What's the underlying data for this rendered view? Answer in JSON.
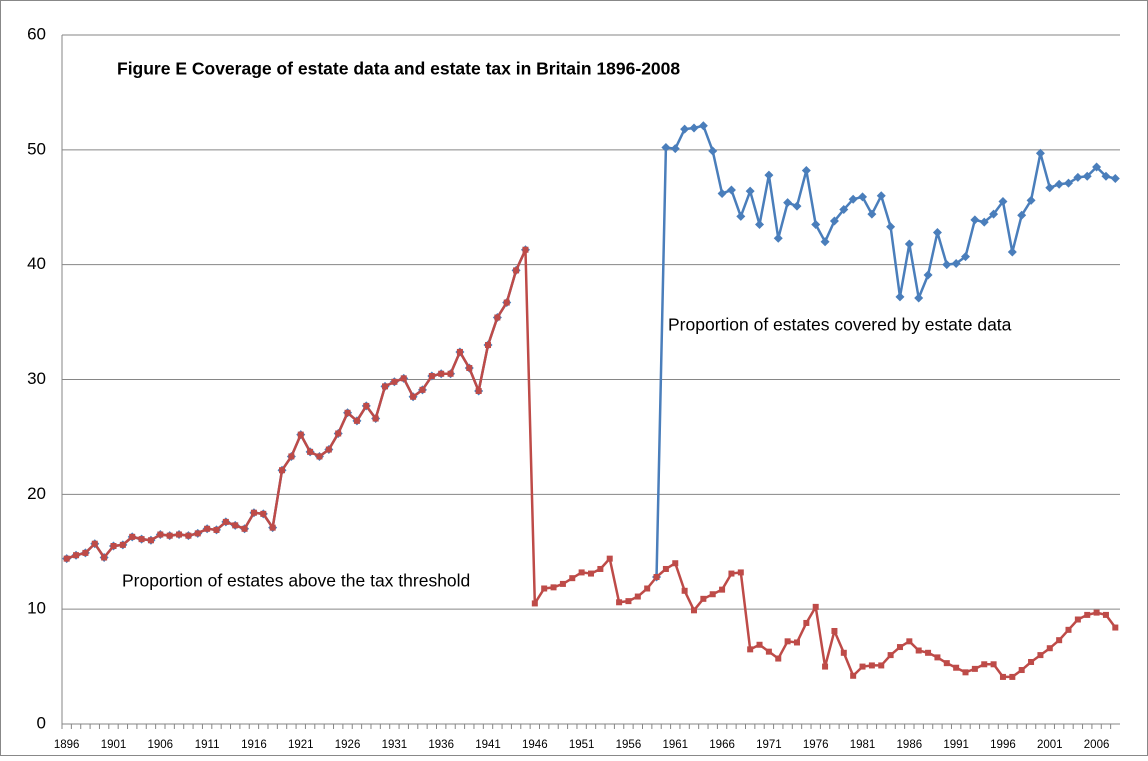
{
  "chart_data": {
    "type": "line",
    "title": "Figure E Coverage of estate data and estate tax in Britain 1896-2008",
    "annotations": [
      "Proportion of estates covered by estate data",
      "Proportion of estates above the tax threshold"
    ],
    "categories": [
      "1896",
      null,
      null,
      null,
      null,
      "1901",
      null,
      null,
      null,
      null,
      "1906",
      null,
      null,
      null,
      null,
      "1911",
      null,
      null,
      null,
      null,
      "1916",
      null,
      null,
      null,
      null,
      "1921",
      null,
      null,
      null,
      null,
      "1926",
      null,
      null,
      null,
      null,
      "1931",
      null,
      null,
      null,
      null,
      "1936",
      null,
      null,
      null,
      null,
      "1941",
      null,
      null,
      null,
      null,
      "1946",
      null,
      null,
      null,
      null,
      "1951",
      null,
      null,
      null,
      null,
      "1956",
      null,
      null,
      null,
      null,
      "1961",
      null,
      null,
      null,
      null,
      "1966",
      null,
      null,
      null,
      null,
      "1971",
      null,
      null,
      null,
      null,
      "1976",
      null,
      null,
      null,
      null,
      "1981",
      null,
      null,
      null,
      null,
      "1986",
      null,
      null,
      null,
      null,
      "1991",
      null,
      null,
      null,
      null,
      "1996",
      null,
      null,
      null,
      null,
      "2001",
      null,
      null,
      null,
      null,
      "2006",
      null,
      null
    ],
    "series": [
      {
        "name": "Proportion of estates covered by estate data",
        "color": "#4a7ebb",
        "marker": "diamond",
        "values": [
          14.4,
          14.7,
          14.9,
          15.7,
          14.5,
          15.5,
          15.6,
          16.3,
          16.1,
          16.0,
          16.5,
          16.4,
          16.5,
          16.4,
          16.6,
          17.0,
          16.9,
          17.6,
          17.3,
          17.0,
          18.4,
          18.3,
          17.1,
          22.1,
          23.3,
          25.2,
          23.7,
          23.3,
          23.9,
          25.3,
          27.1,
          26.4,
          27.7,
          26.6,
          29.4,
          29.8,
          30.1,
          28.5,
          29.1,
          30.3,
          30.5,
          30.5,
          32.4,
          31.0,
          29.0,
          33.0,
          35.4,
          36.7,
          39.5,
          41.3,
          null,
          null,
          null,
          null,
          null,
          null,
          null,
          null,
          null,
          null,
          null,
          null,
          null,
          12.8,
          50.2,
          50.1,
          51.8,
          51.9,
          52.1,
          49.9,
          46.2,
          46.5,
          44.2,
          46.4,
          43.5,
          47.8,
          42.3,
          45.4,
          45.1,
          48.2,
          43.5,
          42.0,
          43.8,
          44.8,
          45.7,
          45.9,
          44.4,
          46.0,
          43.3,
          37.2,
          41.8,
          37.1,
          39.1,
          42.8,
          40.0,
          40.1,
          40.7,
          43.9,
          43.7,
          44.4,
          45.5,
          41.1,
          44.3,
          45.6,
          49.7,
          46.7,
          47.0,
          47.1,
          47.6,
          47.7,
          48.5,
          47.7,
          47.5
        ]
      },
      {
        "name": "Proportion of estates above the tax threshold",
        "color": "#be4b48",
        "marker": "square",
        "values": [
          14.4,
          14.7,
          14.9,
          15.7,
          14.5,
          15.5,
          15.6,
          16.3,
          16.1,
          16.0,
          16.5,
          16.4,
          16.5,
          16.4,
          16.6,
          17.0,
          16.9,
          17.6,
          17.3,
          17.0,
          18.4,
          18.3,
          17.1,
          22.1,
          23.3,
          25.2,
          23.7,
          23.3,
          23.9,
          25.3,
          27.1,
          26.4,
          27.7,
          26.6,
          29.4,
          29.8,
          30.1,
          28.5,
          29.1,
          30.3,
          30.5,
          30.5,
          32.4,
          31.0,
          29.0,
          33.0,
          35.4,
          36.7,
          39.5,
          41.3,
          10.5,
          11.8,
          11.9,
          12.2,
          12.7,
          13.2,
          13.1,
          13.5,
          14.4,
          10.6,
          10.7,
          11.1,
          11.8,
          12.8,
          13.5,
          14.0,
          11.6,
          9.9,
          10.9,
          11.3,
          11.7,
          13.1,
          13.2,
          6.5,
          6.9,
          6.3,
          5.7,
          7.2,
          7.1,
          8.8,
          10.2,
          5.0,
          8.1,
          6.2,
          4.2,
          5.0,
          5.1,
          5.1,
          6.0,
          6.7,
          7.2,
          6.4,
          6.2,
          5.8,
          5.3,
          4.9,
          4.5,
          4.8,
          5.2,
          5.2,
          4.1,
          4.1,
          4.7,
          5.4,
          6.0,
          6.6,
          7.3,
          8.2,
          9.1,
          9.5,
          9.7,
          9.5,
          8.4
        ]
      }
    ],
    "ylim": [
      0,
      60
    ],
    "yticks": [
      0,
      10,
      20,
      30,
      40,
      50,
      60
    ],
    "grid": true
  }
}
